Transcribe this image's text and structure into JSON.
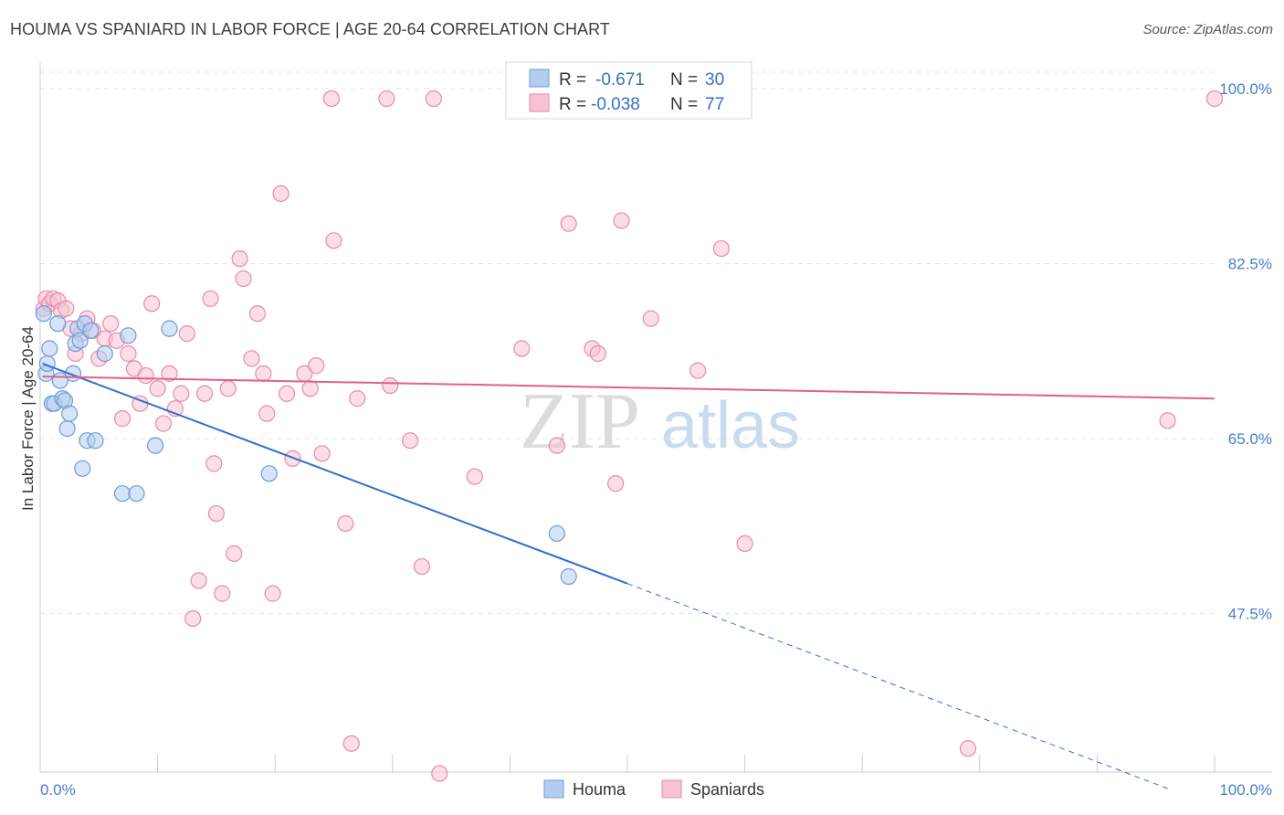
{
  "header": {
    "title": "HOUMA VS SPANIARD IN LABOR FORCE | AGE 20-64 CORRELATION CHART",
    "source": "Source: ZipAtlas.com"
  },
  "colors": {
    "houma_fill": "#b3cdf0",
    "houma_stroke": "#6f9bd8",
    "houma_line": "#2f6fd0",
    "spaniards_fill": "#f7c2d3",
    "spaniards_stroke": "#e98aa9",
    "spaniards_line": "#e0608a",
    "tick_text": "#4a7cc9",
    "grid": "#e4e4e4"
  },
  "legend": {
    "houma": {
      "r_label": "R =",
      "r_value": "-0.671",
      "n_label": "N =",
      "n_value": "30"
    },
    "spaniards": {
      "r_label": "R =",
      "r_value": "-0.038",
      "n_label": "N =",
      "n_value": "77"
    }
  },
  "watermark": {
    "zip": "ZIP",
    "atlas": "atlas"
  },
  "chart_data": {
    "type": "scatter",
    "title": "HOUMA VS SPANIARD IN LABOR FORCE | AGE 20-64 CORRELATION CHART",
    "xlabel": "",
    "ylabel": "In Labor Force | Age 20-64",
    "xlim": [
      0,
      100
    ],
    "ylim": [
      30,
      102
    ],
    "x_tick_labels": [
      "0.0%",
      "100.0%"
    ],
    "y_ticks": [
      47.5,
      65.0,
      82.5,
      100.0
    ],
    "y_tick_labels": [
      "47.5%",
      "65.0%",
      "82.5%",
      "100.0%"
    ],
    "legend_position": "top-center",
    "series": [
      {
        "name": "Houma",
        "r": -0.671,
        "n": 30,
        "trend": {
          "x0": 0.2,
          "y0": 72.5,
          "x1": 50,
          "y1": 50.5,
          "x_end": 96,
          "y_end": 30
        },
        "points": [
          {
            "x": 0.3,
            "y": 77.5
          },
          {
            "x": 0.5,
            "y": 71.5
          },
          {
            "x": 0.6,
            "y": 72.5
          },
          {
            "x": 0.8,
            "y": 74.0
          },
          {
            "x": 1.0,
            "y": 68.5
          },
          {
            "x": 1.2,
            "y": 68.5
          },
          {
            "x": 1.5,
            "y": 76.5
          },
          {
            "x": 1.7,
            "y": 70.8
          },
          {
            "x": 1.9,
            "y": 69.0
          },
          {
            "x": 2.1,
            "y": 68.8
          },
          {
            "x": 2.3,
            "y": 66.0
          },
          {
            "x": 2.5,
            "y": 67.5
          },
          {
            "x": 2.8,
            "y": 71.5
          },
          {
            "x": 3.0,
            "y": 74.5
          },
          {
            "x": 3.2,
            "y": 76.0
          },
          {
            "x": 3.4,
            "y": 74.8
          },
          {
            "x": 3.6,
            "y": 62.0
          },
          {
            "x": 3.8,
            "y": 76.5
          },
          {
            "x": 4.0,
            "y": 64.8
          },
          {
            "x": 4.3,
            "y": 75.8
          },
          {
            "x": 4.7,
            "y": 64.8
          },
          {
            "x": 5.5,
            "y": 73.5
          },
          {
            "x": 7.0,
            "y": 59.5
          },
          {
            "x": 7.5,
            "y": 75.3
          },
          {
            "x": 8.2,
            "y": 59.5
          },
          {
            "x": 9.8,
            "y": 64.3
          },
          {
            "x": 11.0,
            "y": 76.0
          },
          {
            "x": 19.5,
            "y": 61.5
          },
          {
            "x": 44.0,
            "y": 55.5
          },
          {
            "x": 45.0,
            "y": 51.2
          }
        ]
      },
      {
        "name": "Spaniards",
        "r": -0.038,
        "n": 77,
        "trend": {
          "x0": 0.2,
          "y0": 71.2,
          "x1": 100,
          "y1": 69.0
        },
        "points": [
          {
            "x": 0.3,
            "y": 78.0
          },
          {
            "x": 0.5,
            "y": 79.0
          },
          {
            "x": 0.8,
            "y": 78.5
          },
          {
            "x": 1.1,
            "y": 79.0
          },
          {
            "x": 1.5,
            "y": 78.8
          },
          {
            "x": 1.8,
            "y": 77.8
          },
          {
            "x": 2.2,
            "y": 78.0
          },
          {
            "x": 2.6,
            "y": 76.0
          },
          {
            "x": 3.0,
            "y": 73.5
          },
          {
            "x": 3.5,
            "y": 75.5
          },
          {
            "x": 4.0,
            "y": 77.0
          },
          {
            "x": 4.5,
            "y": 75.8
          },
          {
            "x": 5.0,
            "y": 73.0
          },
          {
            "x": 5.5,
            "y": 75.0
          },
          {
            "x": 6.0,
            "y": 76.5
          },
          {
            "x": 6.5,
            "y": 74.8
          },
          {
            "x": 7.0,
            "y": 67.0
          },
          {
            "x": 7.5,
            "y": 73.5
          },
          {
            "x": 8.0,
            "y": 72.0
          },
          {
            "x": 8.5,
            "y": 68.5
          },
          {
            "x": 9.0,
            "y": 71.3
          },
          {
            "x": 9.5,
            "y": 78.5
          },
          {
            "x": 10.0,
            "y": 70.0
          },
          {
            "x": 10.5,
            "y": 66.5
          },
          {
            "x": 11.0,
            "y": 71.5
          },
          {
            "x": 11.5,
            "y": 68.0
          },
          {
            "x": 12.0,
            "y": 69.5
          },
          {
            "x": 12.5,
            "y": 75.5
          },
          {
            "x": 13.0,
            "y": 47.0
          },
          {
            "x": 13.5,
            "y": 50.8
          },
          {
            "x": 14.0,
            "y": 69.5
          },
          {
            "x": 14.5,
            "y": 79.0
          },
          {
            "x": 14.8,
            "y": 62.5
          },
          {
            "x": 15.0,
            "y": 57.5
          },
          {
            "x": 15.5,
            "y": 49.5
          },
          {
            "x": 16.0,
            "y": 70.0
          },
          {
            "x": 16.5,
            "y": 53.5
          },
          {
            "x": 17.0,
            "y": 83.0
          },
          {
            "x": 17.3,
            "y": 81.0
          },
          {
            "x": 18.0,
            "y": 73.0
          },
          {
            "x": 18.5,
            "y": 77.5
          },
          {
            "x": 19.0,
            "y": 71.5
          },
          {
            "x": 19.3,
            "y": 67.5
          },
          {
            "x": 19.8,
            "y": 49.5
          },
          {
            "x": 20.5,
            "y": 89.5
          },
          {
            "x": 21.0,
            "y": 69.5
          },
          {
            "x": 21.5,
            "y": 63.0
          },
          {
            "x": 22.5,
            "y": 71.5
          },
          {
            "x": 23.0,
            "y": 70.0
          },
          {
            "x": 23.5,
            "y": 72.3
          },
          {
            "x": 24.0,
            "y": 63.5
          },
          {
            "x": 24.8,
            "y": 99.0
          },
          {
            "x": 25.0,
            "y": 84.8
          },
          {
            "x": 26.0,
            "y": 56.5
          },
          {
            "x": 26.5,
            "y": 34.5
          },
          {
            "x": 27.0,
            "y": 69.0
          },
          {
            "x": 29.5,
            "y": 99.0
          },
          {
            "x": 29.8,
            "y": 70.3
          },
          {
            "x": 31.5,
            "y": 64.8
          },
          {
            "x": 32.5,
            "y": 52.2
          },
          {
            "x": 33.5,
            "y": 99.0
          },
          {
            "x": 34.0,
            "y": 31.5
          },
          {
            "x": 37.0,
            "y": 61.2
          },
          {
            "x": 41.0,
            "y": 74.0
          },
          {
            "x": 44.0,
            "y": 64.3
          },
          {
            "x": 45.0,
            "y": 86.5
          },
          {
            "x": 47.0,
            "y": 74.0
          },
          {
            "x": 47.5,
            "y": 73.5
          },
          {
            "x": 49.0,
            "y": 60.5
          },
          {
            "x": 49.5,
            "y": 86.8
          },
          {
            "x": 52.0,
            "y": 77.0
          },
          {
            "x": 56.0,
            "y": 71.8
          },
          {
            "x": 58.0,
            "y": 84.0
          },
          {
            "x": 60.0,
            "y": 54.5
          },
          {
            "x": 79.0,
            "y": 34.0
          },
          {
            "x": 96.0,
            "y": 66.8
          },
          {
            "x": 100.0,
            "y": 99.0
          }
        ]
      }
    ]
  }
}
